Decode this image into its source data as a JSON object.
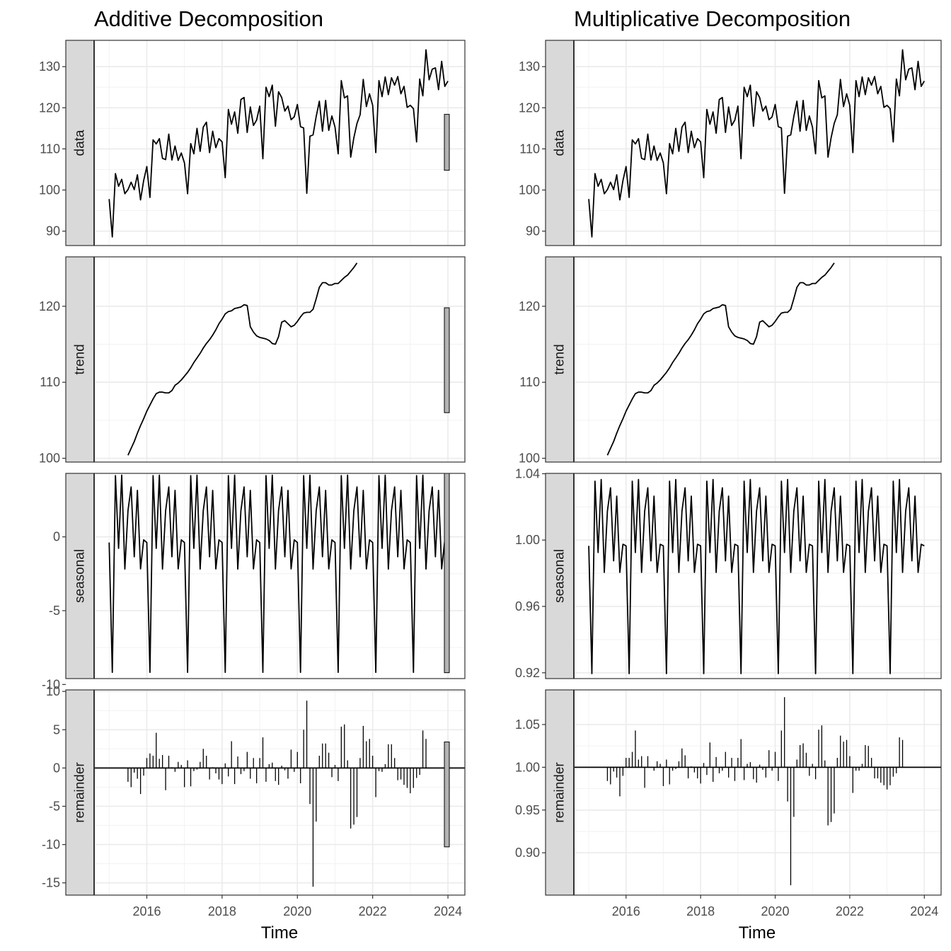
{
  "chart_data": [
    {
      "type": "line",
      "title": "Additive Decomposition",
      "xlabel": "Time",
      "x_ticks": [
        2016,
        2018,
        2020,
        2022,
        2024
      ],
      "x_range": [
        2014.6,
        2024.45
      ],
      "series_start": 2015.0,
      "frequency": 12,
      "panels": [
        {
          "label": "data",
          "ylim": [
            86.5,
            136.4
          ],
          "yticks": [
            90,
            100,
            110,
            120,
            130
          ],
          "ytick_labels": [
            "90",
            "100",
            "110",
            "120",
            "130"
          ],
          "scale_bar": [
            104.8,
            118.4
          ],
          "values": [
            97.8,
            88.6,
            104.0,
            100.9,
            102.6,
            99.1,
            100.1,
            101.9,
            100.1,
            103.7,
            97.6,
            102.3,
            105.7,
            98.2,
            112.2,
            111.2,
            112.5,
            107.7,
            107.4,
            113.6,
            107.3,
            110.7,
            107.2,
            109.0,
            106.6,
            99.1,
            111.3,
            108.8,
            115.0,
            109.4,
            115.3,
            116.5,
            109.1,
            114.3,
            110.3,
            112.5,
            111.7,
            103.0,
            119.6,
            116.0,
            119.0,
            113.8,
            122.0,
            122.5,
            114.0,
            120.2,
            115.7,
            117.0,
            120.4,
            107.6,
            125.0,
            122.7,
            125.5,
            115.5,
            123.9,
            122.5,
            119.2,
            120.4,
            117.1,
            117.8,
            120.8,
            115.4,
            115.1,
            99.2,
            113.1,
            113.4,
            117.9,
            121.6,
            114.3,
            121.8,
            114.5,
            118.0,
            115.3,
            108.8,
            126.6,
            122.4,
            122.9,
            108.0,
            112.7,
            116.2,
            118.3,
            126.9,
            120.3,
            123.4,
            120.6,
            109.1,
            126.6,
            122.7,
            127.5,
            123.2,
            127.3,
            125.5,
            127.6,
            123.4,
            125.2,
            120.1,
            120.6,
            119.8,
            111.7,
            127.0,
            122.9,
            134.1,
            126.8,
            129.4,
            129.7,
            124.4,
            131.3,
            125.2,
            126.5
          ]
        },
        {
          "label": "trend",
          "ylim": [
            99.5,
            126.5
          ],
          "yticks": [
            100,
            110,
            120
          ],
          "ytick_labels": [
            "100",
            "110",
            "120"
          ],
          "scale_bar": [
            106.0,
            119.8
          ],
          "start": 2015.5,
          "values": [
            100.4,
            101.3,
            102.2,
            103.3,
            104.3,
            105.2,
            106.2,
            107.0,
            107.8,
            108.5,
            108.7,
            108.7,
            108.6,
            108.6,
            108.9,
            109.6,
            109.9,
            110.3,
            110.8,
            111.3,
            111.9,
            112.6,
            113.2,
            113.8,
            114.5,
            115.1,
            115.6,
            116.2,
            116.9,
            117.7,
            118.3,
            119.0,
            119.3,
            119.4,
            119.7,
            119.8,
            119.9,
            120.2,
            120.1,
            117.3,
            116.6,
            116.1,
            115.9,
            115.8,
            115.7,
            115.5,
            115.1,
            115.0,
            116.0,
            117.9,
            118.1,
            117.7,
            117.3,
            117.5,
            118.0,
            118.6,
            119.1,
            119.2,
            119.2,
            119.6,
            121.0,
            122.5,
            123.1,
            123.1,
            122.8,
            122.8,
            123.0,
            123.0,
            123.4,
            123.8,
            124.1,
            124.6,
            125.1,
            125.7
          ]
        },
        {
          "label": "seasonal",
          "ylim": [
            -9.6,
            4.3
          ],
          "yticks": [
            -10,
            -5,
            0
          ],
          "ytick_labels": [
            "-10",
            "-5",
            "0"
          ],
          "scale_bar": [
            -9.2,
            4.3
          ],
          "pattern": [
            -0.38,
            -9.18,
            4.15,
            -0.78,
            4.18,
            -2.18,
            1.78,
            3.38,
            -1.35,
            3.15,
            -2.17,
            -0.2
          ]
        },
        {
          "label": "remainder",
          "type": "bar",
          "ylim": [
            -16.6,
            10.2
          ],
          "yticks": [
            -15,
            -10,
            -5,
            0,
            5,
            10
          ],
          "ytick_labels": [
            "-15",
            "-10",
            "-5",
            "0",
            "5",
            "10"
          ],
          "scale_bar": [
            -10.3,
            3.4
          ],
          "start": 2015.5,
          "values": [
            -1.8,
            -2.5,
            -0.6,
            -1.4,
            -3.4,
            -1.0,
            1.3,
            1.9,
            1.6,
            4.6,
            1.2,
            1.7,
            -2.9,
            1.6,
            0.1,
            -0.5,
            0.8,
            0.4,
            -2.5,
            1.0,
            -2.4,
            -0.4,
            -0.2,
            0.8,
            2.5,
            1.6,
            -1.5,
            0.1,
            -0.7,
            -1.5,
            -2.1,
            0.6,
            -1.1,
            3.5,
            -2.1,
            1.5,
            -0.8,
            -0.4,
            2.1,
            -1.4,
            1.3,
            -2.0,
            1.3,
            4.0,
            -1.8,
            0.5,
            0.7,
            -1.7,
            -2.2,
            0.3,
            -0.3,
            -1.4,
            2.4,
            -0.5,
            2.1,
            -2.0,
            5.0,
            8.8,
            -4.7,
            -15.5,
            -7.0,
            1.6,
            3.2,
            3.2,
            2.0,
            -1.2,
            0.4,
            -1.7,
            5.4,
            5.7,
            1.0,
            -7.9,
            -7.4,
            -6.4,
            1.3,
            5.5,
            3.5,
            3.8,
            1.6,
            -3.8,
            -0.4,
            -0.5,
            0.5,
            3.1,
            3.1,
            1.3,
            -1.6,
            -1.5,
            -2.2,
            -2.6,
            -3.3,
            -2.6,
            -1.3,
            -0.9,
            4.9,
            3.8
          ]
        }
      ]
    },
    {
      "type": "line",
      "title": "Multiplicative Decomposition",
      "xlabel": "Time",
      "x_ticks": [
        2016,
        2018,
        2020,
        2022,
        2024
      ],
      "x_range": [
        2014.6,
        2024.45
      ],
      "series_start": 2015.0,
      "frequency": 12,
      "panels": [
        {
          "label": "data",
          "ylim": [
            86.5,
            136.4
          ],
          "yticks": [
            90,
            100,
            110,
            120,
            130
          ],
          "ytick_labels": [
            "90",
            "100",
            "110",
            "120",
            "130"
          ],
          "values": [
            97.8,
            88.6,
            104.0,
            100.9,
            102.6,
            99.1,
            100.1,
            101.9,
            100.1,
            103.7,
            97.6,
            102.3,
            105.7,
            98.2,
            112.2,
            111.2,
            112.5,
            107.7,
            107.4,
            113.6,
            107.3,
            110.7,
            107.2,
            109.0,
            106.6,
            99.1,
            111.3,
            108.8,
            115.0,
            109.4,
            115.3,
            116.5,
            109.1,
            114.3,
            110.3,
            112.5,
            111.7,
            103.0,
            119.6,
            116.0,
            119.0,
            113.8,
            122.0,
            122.5,
            114.0,
            120.2,
            115.7,
            117.0,
            120.4,
            107.6,
            125.0,
            122.7,
            125.5,
            115.5,
            123.9,
            122.5,
            119.2,
            120.4,
            117.1,
            117.8,
            120.8,
            115.4,
            115.1,
            99.2,
            113.1,
            113.4,
            117.9,
            121.6,
            114.3,
            121.8,
            114.5,
            118.0,
            115.3,
            108.8,
            126.6,
            122.4,
            122.9,
            108.0,
            112.7,
            116.2,
            118.3,
            126.9,
            120.3,
            123.4,
            120.6,
            109.1,
            126.6,
            122.7,
            127.5,
            123.2,
            127.3,
            125.5,
            127.6,
            123.4,
            125.2,
            120.1,
            120.6,
            119.8,
            111.7,
            127.0,
            122.9,
            134.1,
            126.8,
            129.4,
            129.7,
            124.4,
            131.3,
            125.2,
            126.5
          ]
        },
        {
          "label": "trend",
          "ylim": [
            99.5,
            126.5
          ],
          "yticks": [
            100,
            110,
            120
          ],
          "ytick_labels": [
            "100",
            "110",
            "120"
          ],
          "start": 2015.5,
          "values": [
            100.4,
            101.3,
            102.2,
            103.3,
            104.3,
            105.2,
            106.2,
            107.0,
            107.8,
            108.5,
            108.7,
            108.7,
            108.6,
            108.6,
            108.9,
            109.6,
            109.9,
            110.3,
            110.8,
            111.3,
            111.9,
            112.6,
            113.2,
            113.8,
            114.5,
            115.1,
            115.6,
            116.2,
            116.9,
            117.7,
            118.3,
            119.0,
            119.3,
            119.4,
            119.7,
            119.8,
            119.9,
            120.2,
            120.1,
            117.3,
            116.6,
            116.1,
            115.9,
            115.8,
            115.7,
            115.5,
            115.1,
            115.0,
            116.0,
            117.9,
            118.1,
            117.7,
            117.3,
            117.5,
            118.0,
            118.6,
            119.1,
            119.2,
            119.2,
            119.6,
            121.0,
            122.5,
            123.1,
            123.1,
            122.8,
            122.8,
            123.0,
            123.0,
            123.4,
            123.8,
            124.1,
            124.6,
            125.1,
            125.7
          ]
        },
        {
          "label": "seasonal",
          "ylim": [
            0.9165,
            1.0402
          ],
          "yticks": [
            0.92,
            0.96,
            1.0,
            1.04
          ],
          "ytick_labels": [
            "0.92",
            "0.96",
            "1.00",
            "1.04"
          ],
          "pattern": [
            0.9965,
            0.9195,
            1.0355,
            0.9925,
            1.0365,
            0.9805,
            1.0175,
            1.0315,
            0.9875,
            1.0265,
            0.9805,
            0.9975
          ]
        },
        {
          "label": "remainder",
          "type": "bar",
          "baseline": 1.0,
          "ylim": [
            0.8505,
            1.0905
          ],
          "yticks": [
            0.9,
            0.95,
            1.0,
            1.05
          ],
          "ytick_labels": [
            "0.90",
            "0.95",
            "1.00",
            "1.05"
          ],
          "start": 2015.5,
          "values": [
            0.984,
            0.98,
            0.995,
            0.988,
            0.966,
            0.99,
            1.011,
            1.011,
            1.018,
            1.043,
            1.009,
            1.013,
            0.976,
            1.013,
            1.0,
            0.996,
            1.007,
            1.004,
            0.978,
            1.009,
            0.98,
            0.996,
            0.998,
            1.007,
            1.022,
            1.014,
            0.987,
            1.001,
            0.994,
            0.987,
            0.981,
            1.005,
            0.991,
            1.029,
            0.983,
            1.012,
            0.993,
            0.996,
            1.018,
            0.988,
            1.011,
            0.984,
            1.011,
            1.033,
            0.985,
            1.004,
            1.006,
            0.986,
            0.982,
            1.003,
            0.997,
            0.988,
            1.02,
            0.996,
            1.018,
            0.984,
            1.043,
            1.082,
            0.96,
            0.862,
            0.942,
            1.009,
            1.026,
            1.028,
            1.017,
            0.99,
            1.004,
            0.986,
            1.044,
            1.049,
            1.008,
            0.932,
            0.936,
            0.946,
            1.011,
            1.037,
            1.03,
            1.032,
            1.013,
            0.97,
            0.996,
            0.996,
            1.004,
            1.026,
            1.025,
            1.011,
            0.987,
            0.987,
            0.982,
            0.979,
            0.974,
            0.979,
            0.989,
            0.993,
            1.035,
            1.032
          ]
        }
      ]
    }
  ]
}
